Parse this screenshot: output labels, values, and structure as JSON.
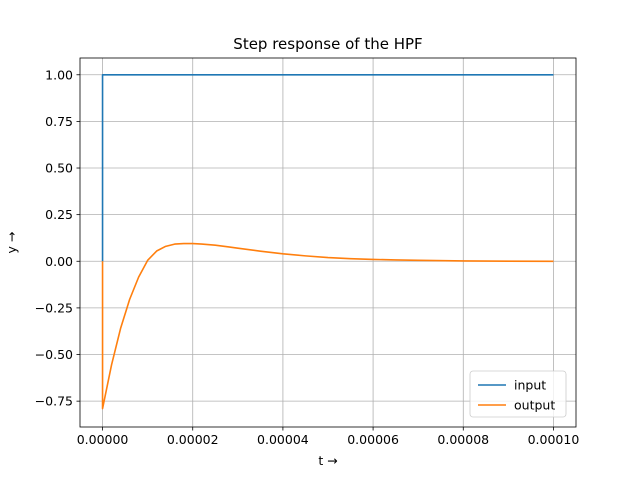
{
  "chart_data": {
    "type": "line",
    "title": "Step response of the HPF",
    "xlabel": "t →",
    "ylabel": "y →",
    "xlim": [
      -5e-06,
      0.000105
    ],
    "ylim": [
      -0.8886,
      1.0899
    ],
    "xticks": [
      0.0,
      2e-05,
      4e-05,
      6e-05,
      8e-05,
      0.0001
    ],
    "xtick_labels": [
      "0.00000",
      "0.00002",
      "0.00004",
      "0.00006",
      "0.00008",
      "0.00010"
    ],
    "yticks": [
      -0.75,
      -0.5,
      -0.25,
      0.0,
      0.25,
      0.5,
      0.75,
      1.0
    ],
    "ytick_labels": [
      "−0.75",
      "−0.50",
      "−0.25",
      "0.00",
      "0.25",
      "0.50",
      "0.75",
      "1.00"
    ],
    "grid": true,
    "legend": "lower-right",
    "series": [
      {
        "name": "input",
        "color": "#1f77b4",
        "x": [
          0.0,
          0.0,
          0.0001
        ],
        "y": [
          0.0,
          1.0,
          1.0
        ]
      },
      {
        "name": "output",
        "color": "#ff7f0e",
        "x": [
          0.0,
          0.0,
          2e-06,
          4e-06,
          6e-06,
          8e-06,
          1e-05,
          1.2e-05,
          1.4e-05,
          1.6e-05,
          1.8e-05,
          2e-05,
          2.2e-05,
          2.5e-05,
          2.8e-05,
          3e-05,
          3.5e-05,
          4e-05,
          4.5e-05,
          5e-05,
          5.5e-05,
          6e-05,
          6.5e-05,
          7e-05,
          8e-05,
          9e-05,
          0.0001
        ],
        "y": [
          0.0,
          -0.79,
          -0.555,
          -0.36,
          -0.205,
          -0.085,
          0.005,
          0.055,
          0.08,
          0.092,
          0.095,
          0.095,
          0.092,
          0.086,
          0.077,
          0.07,
          0.054,
          0.04,
          0.029,
          0.02,
          0.014,
          0.01,
          0.007,
          0.005,
          0.002,
          0.0005,
          0.0
        ]
      }
    ]
  }
}
